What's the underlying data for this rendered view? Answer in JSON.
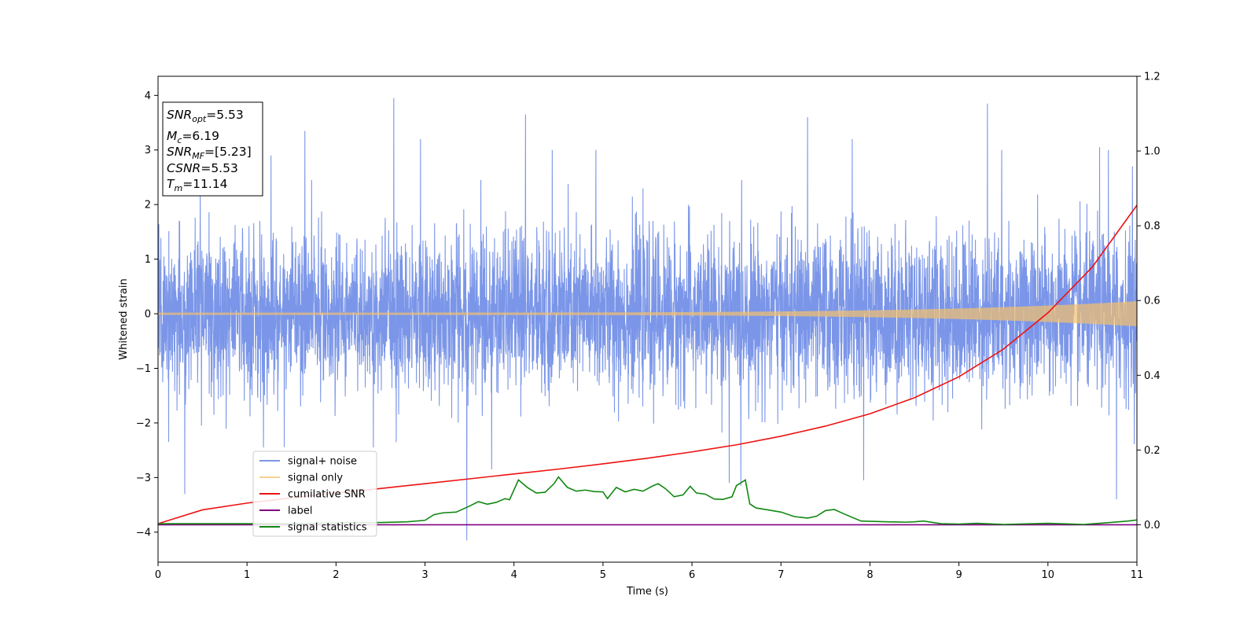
{
  "chart_data": {
    "type": "line",
    "xlabel": "Time (s)",
    "ylabel": "Whitened strain",
    "xlim": [
      0,
      11
    ],
    "ylim": [
      -4.55,
      4.35
    ],
    "y2lim": [
      -0.1,
      1.2
    ],
    "x_ticks": [
      "0",
      "1",
      "2",
      "3",
      "4",
      "5",
      "6",
      "7",
      "8",
      "9",
      "10",
      "11"
    ],
    "y_ticks": [
      "−4",
      "−3",
      "−2",
      "−1",
      "0",
      "1",
      "2",
      "3",
      "4"
    ],
    "y2_ticks": [
      "0.0",
      "0.2",
      "0.4",
      "0.6",
      "0.8",
      "1.0",
      "1.2"
    ],
    "legend_position": "lower-left",
    "annotation": {
      "lines": [
        {
          "label": "SNR",
          "sub": "opt",
          "value": "=5.53"
        },
        {
          "label": "M",
          "sub": "c",
          "value": "=6.19"
        },
        {
          "label": "SNR",
          "sub": "MF",
          "value": "=[5.23]"
        },
        {
          "label": "CSNR",
          "sub": "",
          "value": "=5.53"
        },
        {
          "label": "T",
          "sub": "m",
          "value": "=11.14"
        }
      ]
    },
    "series": [
      {
        "name": "signal+ noise",
        "axis": "left",
        "color": "#7b96e8",
        "kind": "noise",
        "spread": 0.72,
        "peaks": [
          [
            0.3,
            -3.3
          ],
          [
            1.27,
            2.9
          ],
          [
            1.65,
            3.35
          ],
          [
            2.65,
            3.95
          ],
          [
            2.95,
            3.2
          ],
          [
            3.47,
            -4.15
          ],
          [
            3.75,
            -2.85
          ],
          [
            4.13,
            3.65
          ],
          [
            4.43,
            3.0
          ],
          [
            4.92,
            3.0
          ],
          [
            6.42,
            -3.1
          ],
          [
            6.55,
            -3.15
          ],
          [
            7.3,
            3.6
          ],
          [
            7.8,
            3.2
          ],
          [
            7.93,
            -3.05
          ],
          [
            9.32,
            3.85
          ],
          [
            9.48,
            3.0
          ],
          [
            10.58,
            3.05
          ],
          [
            10.68,
            3.0
          ],
          [
            10.77,
            -3.4
          ],
          [
            10.95,
            2.7
          ]
        ]
      },
      {
        "name": "signal only",
        "axis": "left",
        "color": "#f5c16c",
        "kind": "chirp",
        "amp_start": 0.02,
        "amp_end": 0.23
      },
      {
        "name": "cumilative SNR",
        "axis": "right",
        "color": "#ee1111",
        "x": [
          0,
          0.5,
          1,
          1.5,
          2,
          2.5,
          3,
          3.5,
          4,
          4.5,
          5,
          5.5,
          6,
          6.5,
          7,
          7.5,
          8,
          8.5,
          9,
          9.5,
          10,
          10.5,
          11
        ],
        "values": [
          0.003,
          0.04,
          0.058,
          0.072,
          0.085,
          0.097,
          0.11,
          0.123,
          0.136,
          0.149,
          0.163,
          0.178,
          0.195,
          0.214,
          0.237,
          0.264,
          0.297,
          0.34,
          0.396,
          0.47,
          0.567,
          0.69,
          0.855
        ]
      },
      {
        "name": "label",
        "axis": "right",
        "color": "#800080",
        "x": [
          0,
          11
        ],
        "values": [
          0.0,
          0.0
        ]
      },
      {
        "name": "signal statistics",
        "axis": "right",
        "color": "#118811",
        "x": [
          0,
          0.5,
          1,
          1.5,
          2,
          2.5,
          2.8,
          3.0,
          3.1,
          3.2,
          3.35,
          3.5,
          3.6,
          3.7,
          3.8,
          3.9,
          3.95,
          4.05,
          4.15,
          4.25,
          4.35,
          4.45,
          4.5,
          4.6,
          4.7,
          4.8,
          4.9,
          5.0,
          5.05,
          5.15,
          5.25,
          5.35,
          5.45,
          5.55,
          5.62,
          5.7,
          5.8,
          5.9,
          5.98,
          6.05,
          6.15,
          6.25,
          6.35,
          6.45,
          6.5,
          6.6,
          6.65,
          6.72,
          6.85,
          7.0,
          7.15,
          7.3,
          7.4,
          7.5,
          7.6,
          7.7,
          7.9,
          8.2,
          8.4,
          8.5,
          8.6,
          8.8,
          9.0,
          9.2,
          9.5,
          10.0,
          10.4,
          10.7,
          10.9,
          11.0
        ],
        "values": [
          0.003,
          0.003,
          0.003,
          0.003,
          0.005,
          0.006,
          0.008,
          0.012,
          0.027,
          0.032,
          0.034,
          0.05,
          0.062,
          0.055,
          0.06,
          0.07,
          0.067,
          0.12,
          0.1,
          0.085,
          0.087,
          0.11,
          0.128,
          0.1,
          0.09,
          0.093,
          0.089,
          0.088,
          0.07,
          0.1,
          0.088,
          0.095,
          0.09,
          0.103,
          0.11,
          0.097,
          0.075,
          0.08,
          0.103,
          0.085,
          0.082,
          0.069,
          0.068,
          0.075,
          0.105,
          0.12,
          0.056,
          0.045,
          0.04,
          0.034,
          0.022,
          0.018,
          0.023,
          0.038,
          0.041,
          0.03,
          0.01,
          0.008,
          0.007,
          0.008,
          0.01,
          0.003,
          0.002,
          0.004,
          0.001,
          0.004,
          0.001,
          0.006,
          0.01,
          0.013
        ]
      }
    ]
  }
}
